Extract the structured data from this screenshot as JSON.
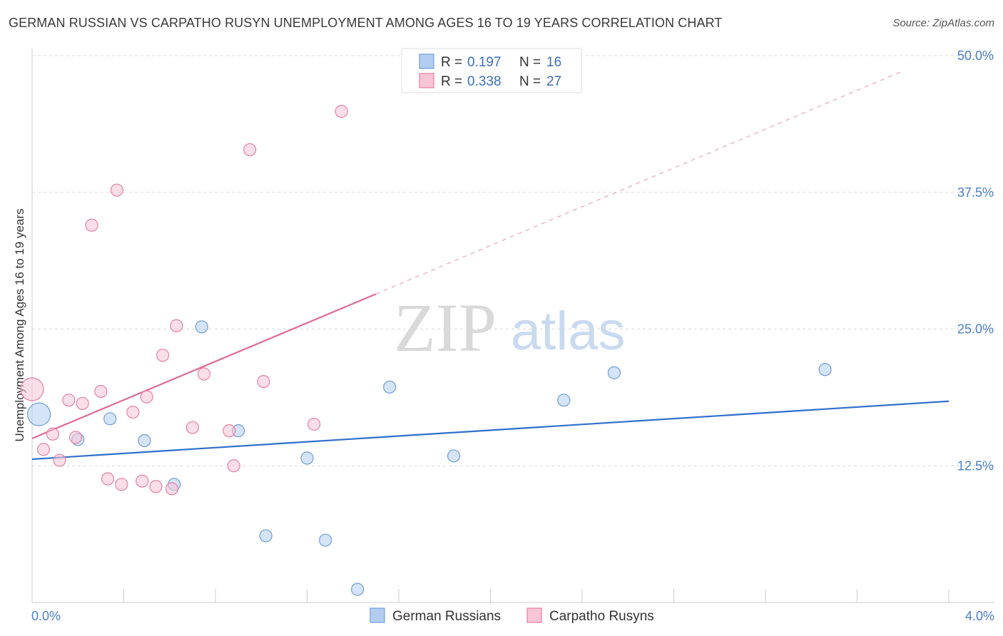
{
  "header": {
    "title": "GERMAN RUSSIAN VS CARPATHO RUSYN UNEMPLOYMENT AMONG AGES 16 TO 19 YEARS CORRELATION CHART",
    "source": "Source: ZipAtlas.com"
  },
  "watermark": {
    "zip": "ZIP",
    "atlas": "atlas"
  },
  "legend": {
    "r_label": "R =",
    "n_label": "N =",
    "rows": [
      {
        "r": "0.197",
        "n": "16"
      },
      {
        "r": "0.338",
        "n": "27"
      }
    ]
  },
  "chart_data": {
    "type": "scatter",
    "title": "GERMAN RUSSIAN VS CARPATHO RUSYN UNEMPLOYMENT AMONG AGES 16 TO 19 YEARS CORRELATION CHART",
    "xlabel": "",
    "ylabel": "Unemployment Among Ages 16 to 19 years",
    "xlim": [
      0,
      4.0
    ],
    "ylim": [
      0,
      50
    ],
    "x_tick_labels": [
      "0.0%",
      "4.0%"
    ],
    "y_ticks": [
      12.5,
      25.0,
      37.5,
      50.0
    ],
    "y_tick_labels": [
      "12.5%",
      "25.0%",
      "37.5%",
      "50.0%"
    ],
    "grid": true,
    "legend_position": "top-center",
    "series": [
      {
        "name": "German Russians",
        "color": "#6f9fd8",
        "fill": "#b3cdf0",
        "r": 0.197,
        "n": 16,
        "points": [
          {
            "x": 0.03,
            "y": 17.2,
            "big": true
          },
          {
            "x": 0.2,
            "y": 14.9
          },
          {
            "x": 0.34,
            "y": 16.8
          },
          {
            "x": 0.49,
            "y": 14.8
          },
          {
            "x": 0.62,
            "y": 10.8
          },
          {
            "x": 0.74,
            "y": 25.2
          },
          {
            "x": 0.9,
            "y": 15.7
          },
          {
            "x": 1.02,
            "y": 6.1
          },
          {
            "x": 1.2,
            "y": 13.2
          },
          {
            "x": 1.28,
            "y": 5.7
          },
          {
            "x": 1.42,
            "y": 1.2
          },
          {
            "x": 1.56,
            "y": 19.7
          },
          {
            "x": 1.84,
            "y": 13.4
          },
          {
            "x": 2.32,
            "y": 18.5
          },
          {
            "x": 2.54,
            "y": 21.0
          },
          {
            "x": 3.46,
            "y": 21.3
          }
        ],
        "trend": {
          "x0": 0.0,
          "y0": 13.1,
          "x1": 4.0,
          "y1": 18.4,
          "style": "solid"
        }
      },
      {
        "name": "Carpatho Rusyns",
        "color": "#e87fa0",
        "fill": "#f7c5d5",
        "r": 0.338,
        "n": 27,
        "points": [
          {
            "x": 0.0,
            "y": 19.5,
            "big": true
          },
          {
            "x": 0.05,
            "y": 14.0
          },
          {
            "x": 0.09,
            "y": 15.4
          },
          {
            "x": 0.12,
            "y": 13.0
          },
          {
            "x": 0.16,
            "y": 18.5
          },
          {
            "x": 0.19,
            "y": 15.1
          },
          {
            "x": 0.22,
            "y": 18.2
          },
          {
            "x": 0.26,
            "y": 34.5
          },
          {
            "x": 0.3,
            "y": 19.3
          },
          {
            "x": 0.33,
            "y": 11.3
          },
          {
            "x": 0.37,
            "y": 37.7
          },
          {
            "x": 0.39,
            "y": 10.8
          },
          {
            "x": 0.44,
            "y": 17.4
          },
          {
            "x": 0.48,
            "y": 11.1
          },
          {
            "x": 0.5,
            "y": 18.8
          },
          {
            "x": 0.54,
            "y": 10.6
          },
          {
            "x": 0.57,
            "y": 22.6
          },
          {
            "x": 0.61,
            "y": 10.4
          },
          {
            "x": 0.63,
            "y": 25.3
          },
          {
            "x": 0.7,
            "y": 16.0
          },
          {
            "x": 0.75,
            "y": 20.9
          },
          {
            "x": 0.86,
            "y": 15.7
          },
          {
            "x": 0.88,
            "y": 12.5
          },
          {
            "x": 0.95,
            "y": 41.4
          },
          {
            "x": 1.01,
            "y": 20.2
          },
          {
            "x": 1.23,
            "y": 16.3
          },
          {
            "x": 1.35,
            "y": 44.9
          }
        ],
        "trend": {
          "x0": 0.0,
          "y0": 15.0,
          "x1": 1.5,
          "y1": 28.2,
          "x_dash_end": 3.8,
          "y_dash_end": 48.6,
          "style": "solid-then-dashed"
        }
      }
    ]
  }
}
